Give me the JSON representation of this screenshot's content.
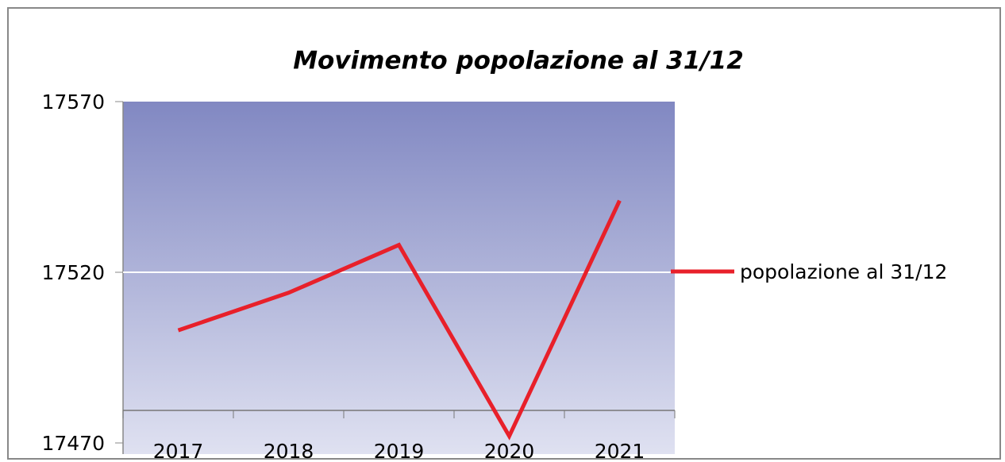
{
  "chart_data": {
    "type": "line",
    "title": "Movimento popolazione al 31/12",
    "categories": [
      "2017",
      "2018",
      "2019",
      "2020",
      "2021"
    ],
    "series": [
      {
        "name": "popolazione al 31/12",
        "color": "#e8202a",
        "values": [
          17503,
          17514,
          17528,
          17472,
          17541
        ]
      }
    ],
    "ylim": [
      17470,
      17570
    ],
    "yticks": [
      17470,
      17520,
      17570
    ],
    "grid": true,
    "legend": "right"
  }
}
